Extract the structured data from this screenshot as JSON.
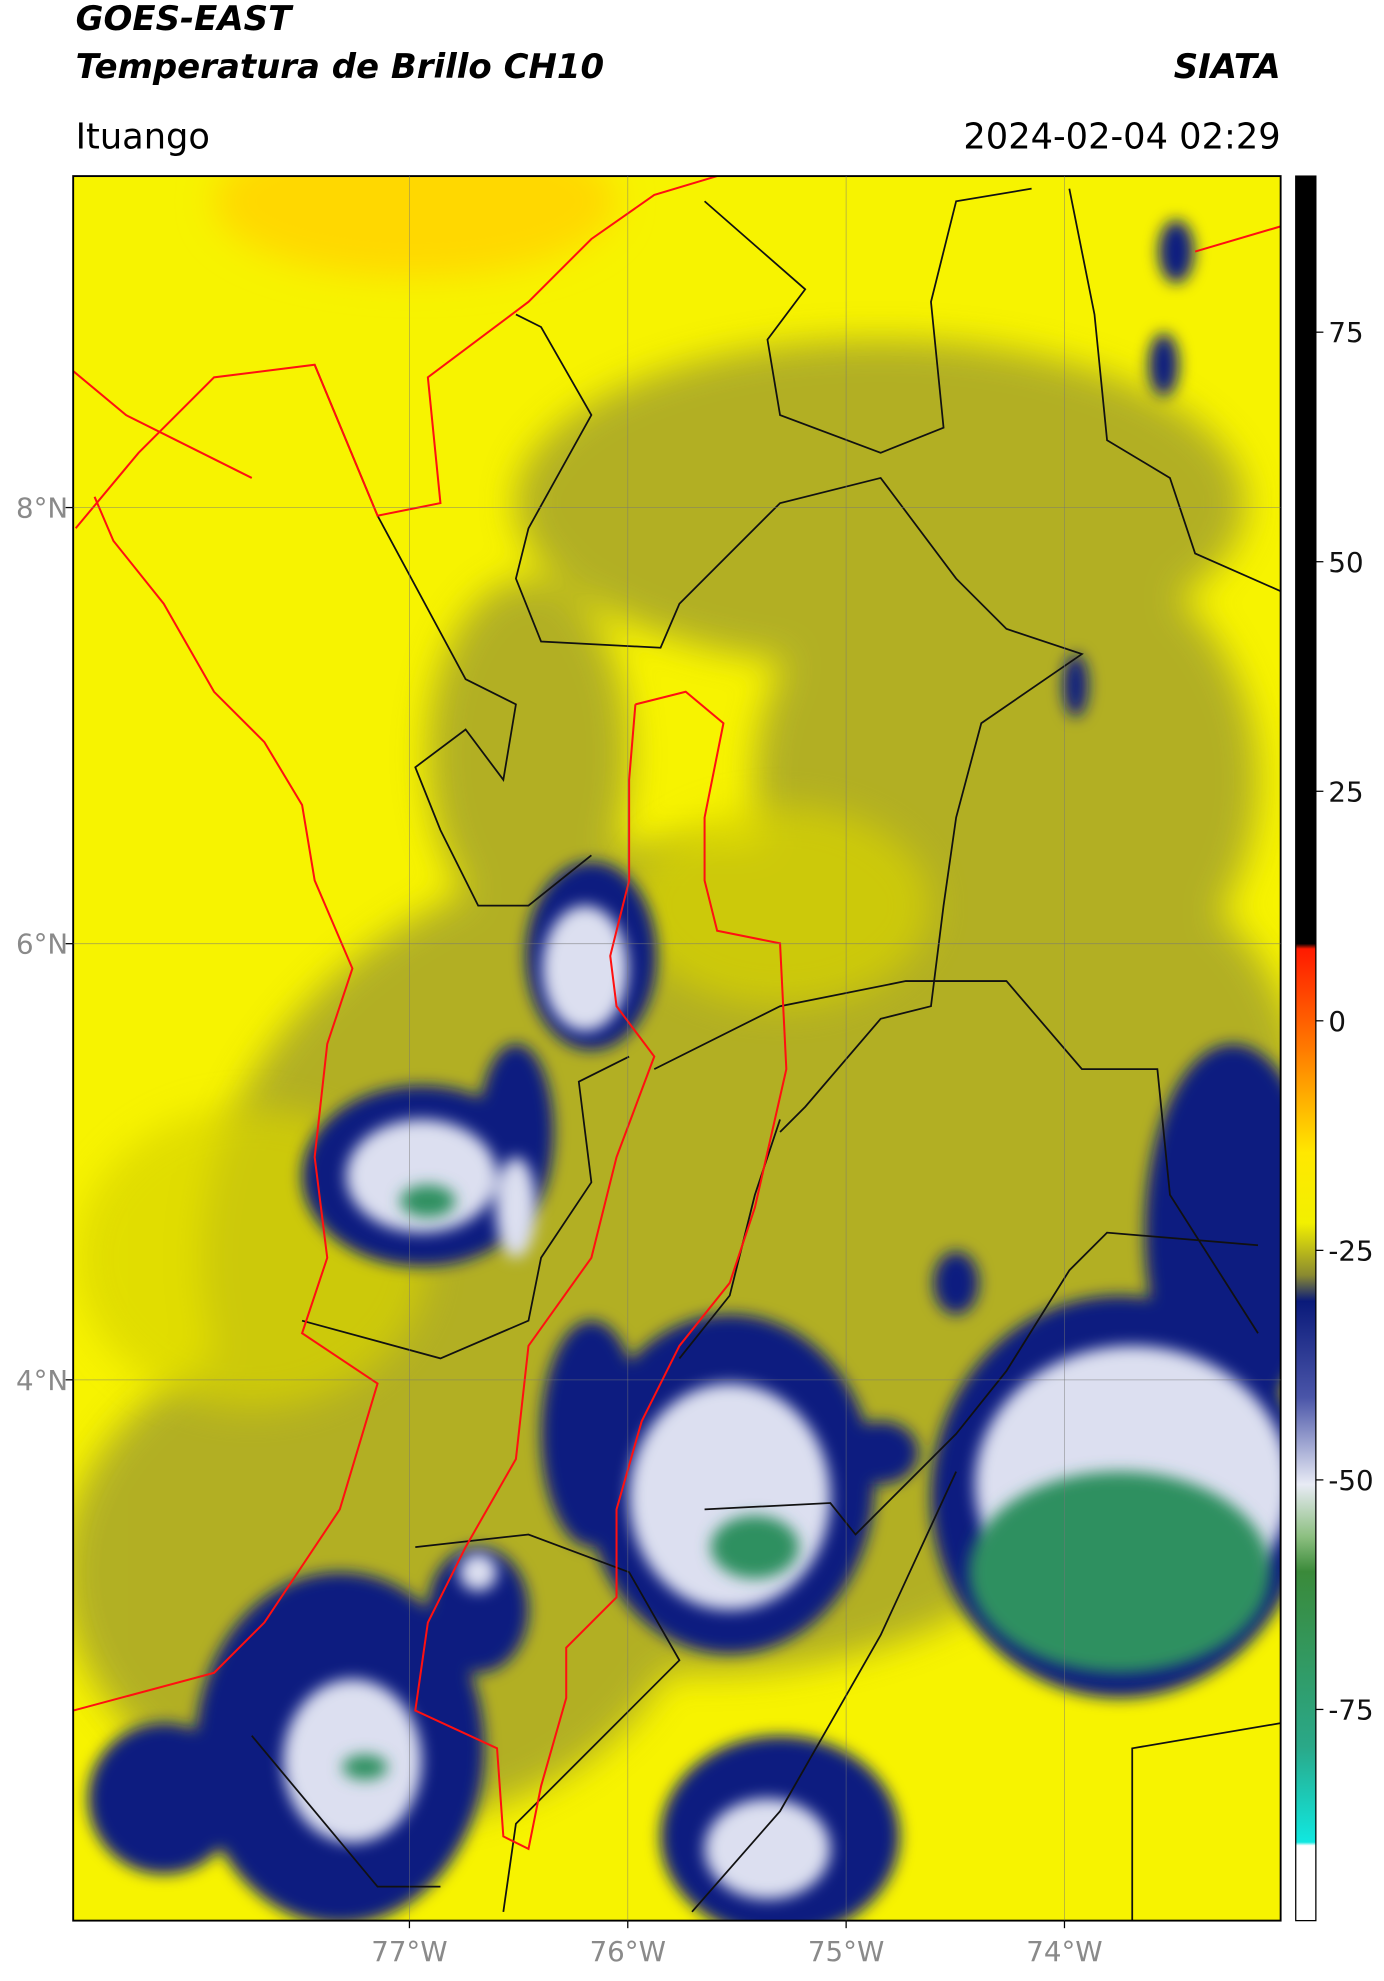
{
  "header": {
    "title": "GOES-EAST",
    "subtitle": "Temperatura de Brillo CH10",
    "brand": "SIATA",
    "location": "Ituango",
    "datetime": "2024-02-04 02:29"
  },
  "map": {
    "lonlim": [
      -78.54,
      -73.01
    ],
    "latlim": [
      1.52,
      9.52
    ],
    "lat_ticks": [
      {
        "value": 8,
        "label": "8°N"
      },
      {
        "value": 6,
        "label": "6°N"
      },
      {
        "value": 4,
        "label": "4°N"
      }
    ],
    "lon_ticks": [
      {
        "value": -77,
        "label": "77°W"
      },
      {
        "value": -76,
        "label": "76°W"
      },
      {
        "value": -75,
        "label": "75°W"
      },
      {
        "value": -74,
        "label": "74°W"
      }
    ],
    "grid": true
  },
  "colorbar": {
    "lim": [
      -98,
      92
    ],
    "ticks": [
      75,
      50,
      25,
      0,
      -25,
      -50,
      -75
    ]
  }
}
